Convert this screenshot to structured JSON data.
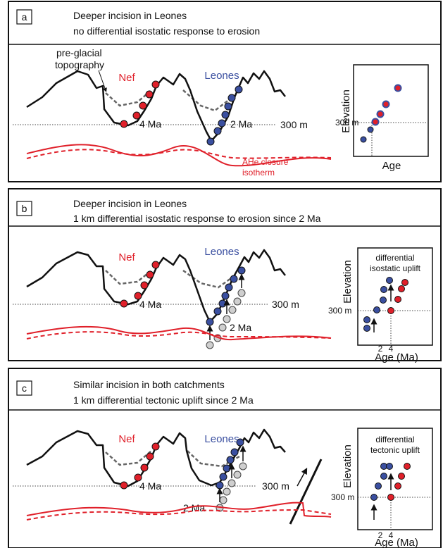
{
  "colors": {
    "red": "#e0202a",
    "blue": "#3a4fa0",
    "grey": "#cfcfcf",
    "dash": "#666666"
  },
  "panels": [
    {
      "letter": "a",
      "line1": "Deeper incision in Leones",
      "line2": "no differential isostatic response to erosion",
      "nef": "Nef",
      "leones": "Leones",
      "age_left": "4 Ma",
      "age_right": "2 Ma",
      "elev": "300 m",
      "pre_glacial_1": "pre-glacial",
      "pre_glacial_2": "topography",
      "ahe_1": "AHe closure",
      "ahe_2": "isotherm",
      "inset": {
        "ylabel": "Elevation",
        "xlabel": "Age",
        "ref": "300 m",
        "title_1": "",
        "title_2": "",
        "tick_2": "",
        "tick_4": ""
      }
    },
    {
      "letter": "b",
      "line1": "Deeper incision in Leones",
      "line2": "1 km differential isostatic response to erosion since 2 Ma",
      "nef": "Nef",
      "leones": "Leones",
      "age_left": "4 Ma",
      "age_right": "2 Ma",
      "elev": "300 m",
      "inset": {
        "ylabel": "Elevation",
        "xlabel": "Age (Ma)",
        "ref": "300 m",
        "title_1": "differential",
        "title_2": "isostatic uplift",
        "tick_2": "2",
        "tick_4": "4"
      }
    },
    {
      "letter": "c",
      "line1": "Similar incision in both catchments",
      "line2": "1 km differential  tectonic uplift since 2 Ma",
      "nef": "Nef",
      "leones": "Leones",
      "age_left": "4 Ma",
      "age_right": "2 Ma",
      "elev": "300 m",
      "inset": {
        "ylabel": "Elevation",
        "xlabel": "Age (Ma)",
        "ref": "300 m",
        "title_1": "differential",
        "title_2": "tectonic uplift",
        "tick_2": "2",
        "tick_4": "4"
      }
    }
  ]
}
